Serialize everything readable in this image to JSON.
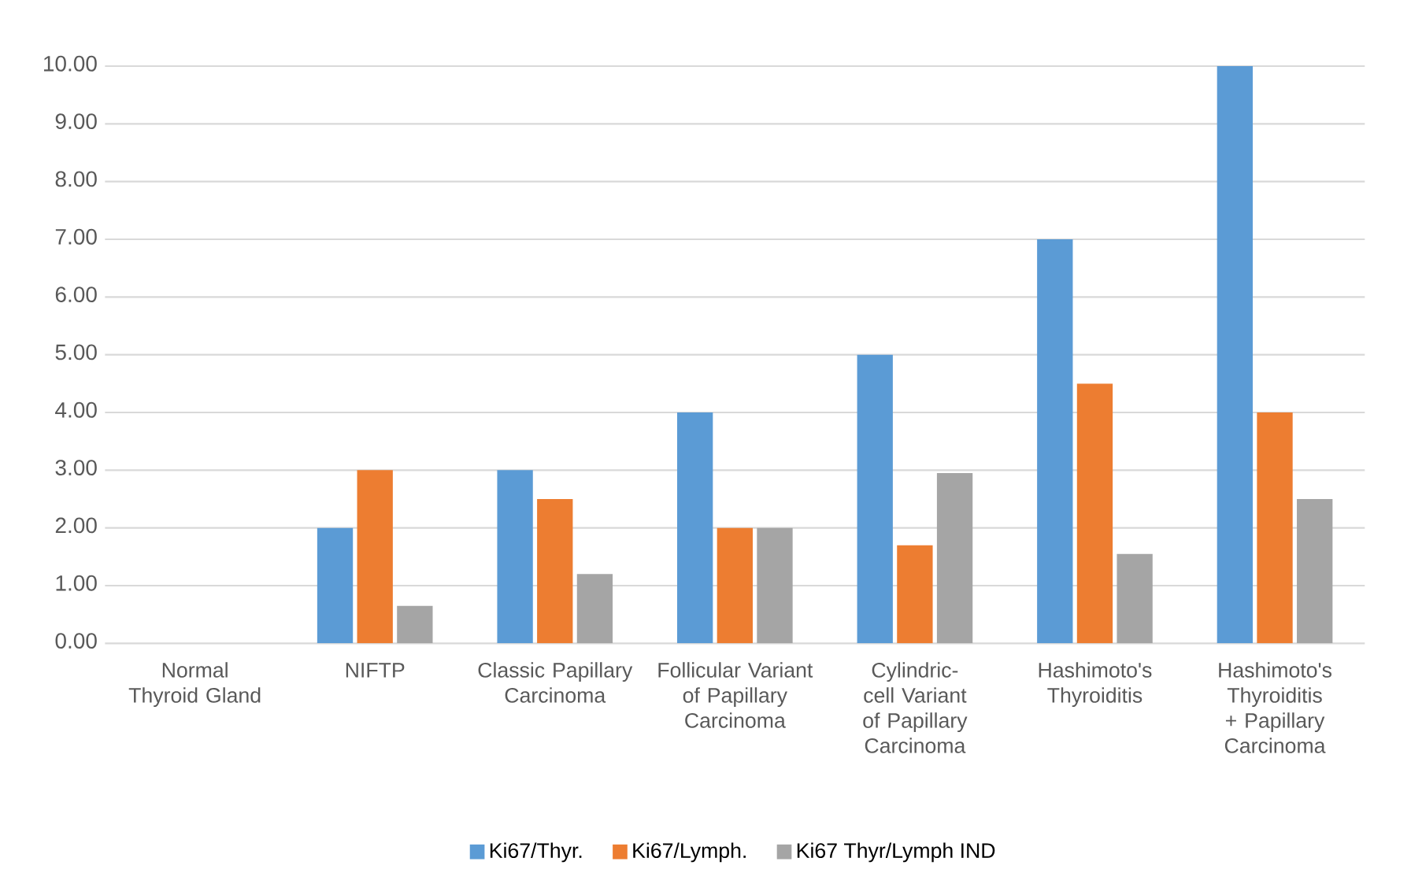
{
  "chart_data": {
    "type": "bar",
    "categories": [
      "Normal Thyroid Gland",
      "NIFTP",
      "Classic Papillary Carcinoma",
      "Follicular Variant of Papillary Carcinoma",
      "Cylindric-cell Variant of Papillary Carcinoma",
      "Hashimoto's Thyroiditis",
      "Hashimoto's Thyroiditis + Papillary Carcinoma"
    ],
    "series": [
      {
        "name": "Ki67/Thyr.",
        "color": "#5b9bd5",
        "values": [
          0,
          2,
          3,
          4,
          5,
          7,
          10
        ]
      },
      {
        "name": "Ki67/Lymph.",
        "color": "#ed7d31",
        "values": [
          0,
          3,
          2.5,
          2,
          1.7,
          4.5,
          4
        ]
      },
      {
        "name": "Ki67 Thyr/Lymph IND",
        "color": "#a5a5a5",
        "values": [
          0,
          0.65,
          1.2,
          2,
          2.95,
          1.55,
          2.5
        ]
      }
    ],
    "ylim": [
      0,
      10
    ],
    "yticks": [
      {
        "value": 0,
        "label": "0.00"
      },
      {
        "value": 1,
        "label": "1.00"
      },
      {
        "value": 2,
        "label": "2.00"
      },
      {
        "value": 3,
        "label": "3.00"
      },
      {
        "value": 4,
        "label": "4.00"
      },
      {
        "value": 5,
        "label": "5.00"
      },
      {
        "value": 6,
        "label": "6.00"
      },
      {
        "value": 7,
        "label": "7.00"
      },
      {
        "value": 8,
        "label": "8.00"
      },
      {
        "value": 9,
        "label": "9.00"
      },
      {
        "value": 10,
        "label": "10.00"
      }
    ],
    "grid": "y",
    "legend": "bottom"
  }
}
